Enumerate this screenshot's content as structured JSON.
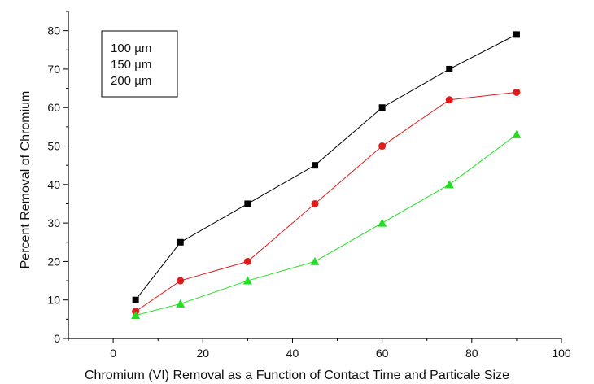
{
  "chart_data": {
    "type": "line",
    "xlabel": "Chromium (VI) Removal as a Function of Contact  Time   and Particale Size",
    "ylabel": "Percent Removal of Chromium",
    "xlim": [
      -10,
      100
    ],
    "ylim": [
      0,
      85
    ],
    "x_ticks": [
      0,
      20,
      40,
      60,
      80,
      100
    ],
    "y_ticks": [
      0,
      10,
      20,
      30,
      40,
      50,
      60,
      70,
      80
    ],
    "x": [
      5,
      15,
      30,
      45,
      60,
      75,
      90
    ],
    "legend_position": "top-left",
    "grid": false,
    "series": [
      {
        "name": "100 µm",
        "marker": "square",
        "color": "#000000",
        "values": [
          10,
          25,
          35,
          45,
          60,
          70,
          79
        ]
      },
      {
        "name": "150 µm",
        "marker": "circle",
        "color": "#e01b1b",
        "values": [
          7,
          15,
          20,
          35,
          50,
          62,
          64
        ]
      },
      {
        "name": "200 µm",
        "marker": "triangle",
        "color": "#22dd22",
        "values": [
          6,
          9,
          15,
          20,
          30,
          40,
          53
        ]
      }
    ]
  }
}
